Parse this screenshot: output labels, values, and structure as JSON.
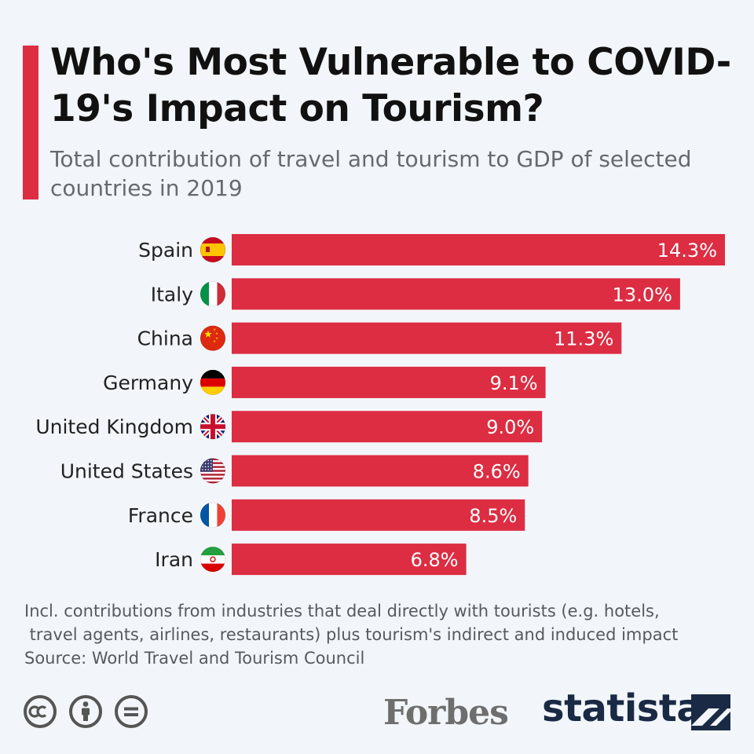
{
  "header": {
    "title": "Who's Most Vulnerable to COVID-19's Impact on Tourism?",
    "subtitle": "Total contribution of travel and tourism to GDP of selected countries in 2019"
  },
  "chart_data": {
    "type": "bar",
    "orientation": "horizontal",
    "categories": [
      "Spain",
      "Italy",
      "China",
      "Germany",
      "United Kingdom",
      "United States",
      "France",
      "Iran"
    ],
    "values": [
      14.3,
      13.0,
      11.3,
      9.1,
      9.0,
      8.6,
      8.5,
      6.8
    ],
    "value_labels": [
      "14.3%",
      "13.0%",
      "11.3%",
      "9.1%",
      "9.0%",
      "8.6%",
      "8.5%",
      "6.8%"
    ],
    "flag_icons": [
      "spain-flag-icon",
      "italy-flag-icon",
      "china-flag-icon",
      "germany-flag-icon",
      "united-kingdom-flag-icon",
      "united-states-flag-icon",
      "france-flag-icon",
      "iran-flag-icon"
    ],
    "unit": "%",
    "xlim": [
      0,
      14.3
    ],
    "bar_color": "#dc2d42",
    "grid": false,
    "legend": "none"
  },
  "footnote": {
    "note_line1": "Incl. contributions from industries that deal directly with tourists (e.g. hotels,",
    "note_line2": " travel agents, airlines, restaurants) plus tourism's indirect and induced impact",
    "source": "Source: World Travel and Tourism Council"
  },
  "footer": {
    "license_icons": [
      "creative-commons-icon",
      "attribution-icon",
      "no-derivatives-icon"
    ],
    "forbes": "Forbes",
    "statista": "statista",
    "brand_color": "#1a2a44"
  }
}
